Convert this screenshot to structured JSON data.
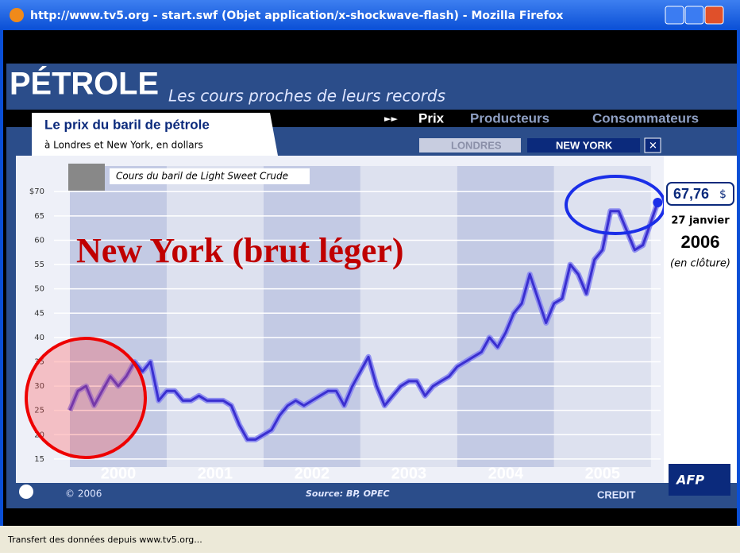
{
  "window": {
    "title": "http://www.tv5.org - start.swf (Objet application/x-shockwave-flash) - Mozilla Firefox",
    "status": "Transfert des données depuis www.tv5.org..."
  },
  "header": {
    "brand": "PÉTROLE",
    "tagline": "Les cours proches de leurs records",
    "heading": "Le prix du baril de pétrole",
    "subheading": "à Londres et New York, en dollars",
    "nav": [
      "Prix",
      "Producteurs",
      "Consommateurs"
    ],
    "markets": [
      "LONDRES",
      "NEW YORK"
    ]
  },
  "chart_data": {
    "type": "line",
    "title": "Cours du baril de Light Sweet Crude",
    "annotation": "New York (brut léger)",
    "color": "#3a2fd0",
    "x": [
      2000,
      2000.083,
      2000.167,
      2000.25,
      2000.333,
      2000.417,
      2000.5,
      2000.583,
      2000.667,
      2000.75,
      2000.833,
      2000.917,
      2001,
      2001.083,
      2001.167,
      2001.25,
      2001.333,
      2001.417,
      2001.5,
      2001.583,
      2001.667,
      2001.75,
      2001.833,
      2001.917,
      2002,
      2002.083,
      2002.167,
      2002.25,
      2002.333,
      2002.417,
      2002.5,
      2002.583,
      2002.667,
      2002.75,
      2002.833,
      2002.917,
      2003,
      2003.083,
      2003.167,
      2003.25,
      2003.333,
      2003.417,
      2003.5,
      2003.583,
      2003.667,
      2003.75,
      2003.833,
      2003.917,
      2004,
      2004.083,
      2004.167,
      2004.25,
      2004.333,
      2004.417,
      2004.5,
      2004.583,
      2004.667,
      2004.75,
      2004.833,
      2004.917,
      2005,
      2005.083,
      2005.167,
      2005.25,
      2005.333,
      2005.417,
      2005.5,
      2005.583,
      2005.667,
      2005.75,
      2005.833,
      2005.917,
      2006.07
    ],
    "values": [
      25,
      29,
      30,
      26,
      29,
      32,
      30,
      32,
      35,
      33,
      35,
      27,
      29,
      29,
      27,
      27,
      28,
      27,
      27,
      27,
      26,
      22,
      19,
      19,
      20,
      21,
      24,
      26,
      27,
      26,
      27,
      28,
      29,
      29,
      26,
      30,
      33,
      36,
      30,
      26,
      28,
      30,
      31,
      31,
      28,
      30,
      31,
      32,
      34,
      35,
      36,
      37,
      40,
      38,
      41,
      45,
      47,
      53,
      48,
      43,
      47,
      48,
      55,
      53,
      49,
      56,
      58,
      66,
      66,
      62,
      58,
      59,
      67.76
    ],
    "last_label": "67,76",
    "unit": "$",
    "date": "27 janvier",
    "year": "2006",
    "note": "(en clôture)",
    "xlim": [
      2000,
      2006.1
    ],
    "xticks": [
      {
        "value": 2000.5,
        "label": "2000"
      },
      {
        "value": 2001.5,
        "label": "2001"
      },
      {
        "value": 2002.5,
        "label": "2002"
      },
      {
        "value": 2003.5,
        "label": "2003"
      },
      {
        "value": 2004.5,
        "label": "2004"
      },
      {
        "value": 2005.5,
        "label": "2005"
      }
    ],
    "ylim": [
      14,
      72
    ],
    "yticks": [
      15,
      20,
      25,
      30,
      35,
      40,
      45,
      50,
      55,
      60,
      65,
      {
        "value": 70,
        "label": "$70"
      }
    ],
    "grid": true
  },
  "footer": {
    "copyright": "© 2006",
    "source": "Source: BP, OPEC",
    "credit": "CREDIT",
    "logo": "AFP"
  }
}
